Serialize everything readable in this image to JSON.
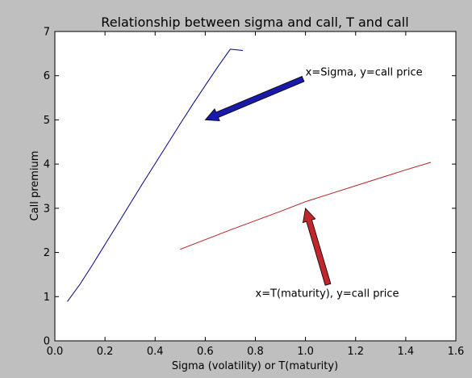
{
  "chart_data": {
    "type": "line",
    "title": "Relationship between sigma and call, T and call",
    "xlabel": "Sigma (volatility) or T(maturity)",
    "ylabel": "Call premium",
    "xlim": [
      0.0,
      1.6
    ],
    "ylim": [
      0,
      7
    ],
    "xticks": [
      "0.0",
      "0.2",
      "0.4",
      "0.6",
      "0.8",
      "1.0",
      "1.2",
      "1.4",
      "1.6"
    ],
    "yticks": [
      "0",
      "1",
      "2",
      "3",
      "4",
      "5",
      "6",
      "7"
    ],
    "grid": false,
    "series": [
      {
        "color": "#00008b",
        "x": [
          0.05,
          0.1,
          0.15,
          0.2,
          0.25,
          0.3,
          0.35,
          0.4,
          0.45,
          0.5,
          0.55,
          0.6,
          0.65,
          0.7,
          0.75
        ],
        "y": [
          0.89,
          1.28,
          1.72,
          2.18,
          2.64,
          3.1,
          3.56,
          4.01,
          4.46,
          4.91,
          5.35,
          5.78,
          6.2,
          6.6,
          6.57
        ]
      },
      {
        "color": "#b22222",
        "x": [
          0.5,
          0.6,
          0.7,
          0.8,
          0.9,
          1.0,
          1.1,
          1.2,
          1.3,
          1.4,
          1.5
        ],
        "y": [
          2.07,
          2.29,
          2.51,
          2.72,
          2.93,
          3.15,
          3.33,
          3.51,
          3.69,
          3.87,
          4.04
        ]
      }
    ],
    "annotations": [
      {
        "text": "x=Sigma, y=call price",
        "text_xy": [
          1.0,
          6.0
        ],
        "arrow_to": [
          0.6,
          5.0
        ],
        "arrow_color": "#1a1aa8"
      },
      {
        "text": "x=T(maturity), y=call price",
        "text_xy": [
          0.8,
          1.0
        ],
        "arrow_to": [
          1.0,
          3.0
        ],
        "arrow_color": "#c0272d"
      }
    ]
  }
}
